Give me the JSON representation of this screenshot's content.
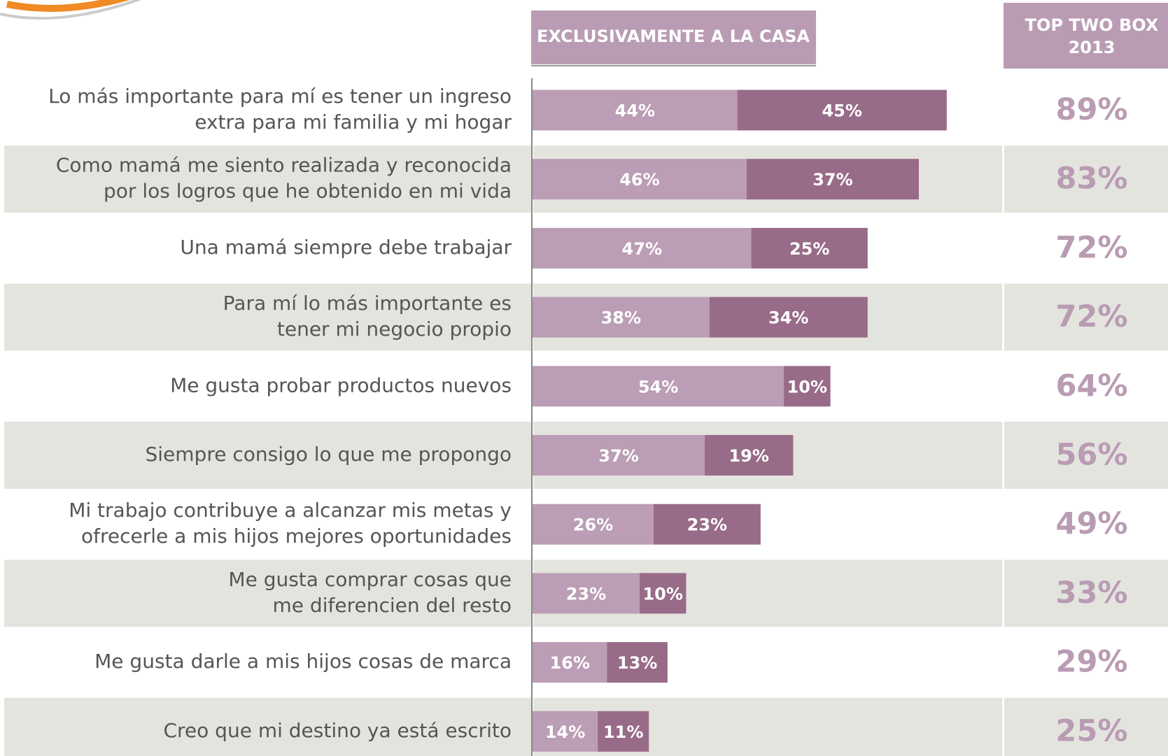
{
  "chart_data": {
    "type": "stacked-bar-horizontal",
    "header": "EXCLUSIVAMENTE A LA CASA",
    "total_header": [
      "TOP TWO BOX",
      "2013"
    ],
    "categories": [
      [
        "Lo más importante para mí es tener un ingreso",
        "extra para mi familia y mi hogar"
      ],
      [
        "Como mamá me siento realizada y reconocida",
        "por los logros que he obtenido en mi vida"
      ],
      [
        "Una mamá siempre debe trabajar"
      ],
      [
        "Para mí lo más importante es",
        "tener mi negocio propio"
      ],
      [
        "Me gusta probar productos nuevos"
      ],
      [
        "Siempre consigo lo que me propongo"
      ],
      [
        "Mi trabajo contribuye a alcanzar mis metas y",
        "ofrecerle a mis hijos mejores oportunidades"
      ],
      [
        "Me gusta comprar cosas que",
        "me diferencien del resto"
      ],
      [
        "Me gusta darle a mis hijos cosas de marca"
      ],
      [
        "Creo que mi destino ya está escrito"
      ]
    ],
    "series": [
      {
        "color": "#bb9db5",
        "values": [
          44,
          46,
          47,
          38,
          54,
          37,
          26,
          23,
          16,
          14
        ],
        "value_labels": [
          "44%",
          "46%",
          "47%",
          "38%",
          "54%",
          "37%",
          "26%",
          "23%",
          "16%",
          "14%"
        ]
      },
      {
        "color": "#986b88",
        "values": [
          45,
          37,
          25,
          34,
          10,
          19,
          23,
          10,
          13,
          11
        ],
        "value_labels": [
          "45%",
          "37%",
          "25%",
          "34%",
          "10%",
          "19%",
          "23%",
          "10%",
          "13%",
          "11%"
        ]
      }
    ],
    "totals": [
      89,
      83,
      72,
      72,
      64,
      56,
      49,
      33,
      29,
      25
    ],
    "total_labels": [
      "89%",
      "83%",
      "72%",
      "72%",
      "64%",
      "56%",
      "49%",
      "33%",
      "29%",
      "25%"
    ],
    "total_color": "#b99cb3"
  }
}
